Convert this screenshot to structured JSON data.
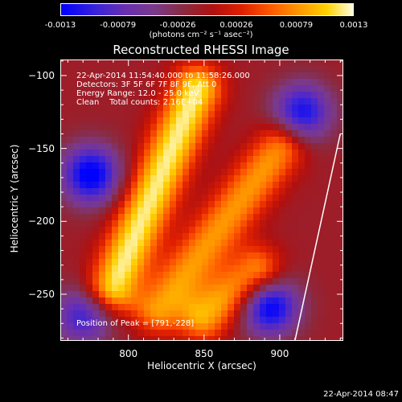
{
  "colorbar": {
    "ticks": [
      "-0.0013",
      "-0.00079",
      "-0.00026",
      "0.00026",
      "0.00079",
      "0.0013"
    ],
    "units": "(photons cm⁻² s⁻¹ asec⁻²)"
  },
  "chart_data": {
    "type": "heatmap",
    "title": "Reconstructed RHESSI Image",
    "xlabel": "Heliocentric X (arcsec)",
    "ylabel": "Heliocentric Y (arcsec)",
    "xlim": [
      755,
      942
    ],
    "ylim": [
      -282,
      -89
    ],
    "xticks": [
      800,
      850,
      900
    ],
    "yticks": [
      -100,
      -150,
      -200,
      -250
    ],
    "zlim": [
      -0.0013,
      0.0013
    ],
    "colormap": "RHESSI red-temperature (blue-purple negative, red-yellow-white positive)",
    "annotations": {
      "time": "22-Apr-2014 11:54:40.000 to 11:58:26.000",
      "detectors": "Detectors: 3F 5F 6F 7F 8F 9F, Att 0",
      "energy": "Energy Range: 12.0 - 25.0 keV",
      "clean": "Clean    Total counts: 2.16E+04",
      "peak": "Position of Peak = [791,-228]"
    },
    "features": [
      {
        "kind": "positive-ridge",
        "from": [
          790,
          -245
        ],
        "to": [
          845,
          -110
        ],
        "peak": 0.0013
      },
      {
        "kind": "positive-ridge",
        "from": [
          820,
          -260
        ],
        "to": [
          900,
          -150
        ],
        "peak": 0.0009
      },
      {
        "kind": "positive-ridge",
        "from": [
          850,
          -265
        ],
        "to": [
          885,
          -235
        ],
        "peak": 0.001
      },
      {
        "kind": "negative-blob",
        "center": [
          775,
          -168
        ],
        "peak": -0.0013
      },
      {
        "kind": "negative-blob",
        "center": [
          915,
          -125
        ],
        "peak": -0.0011
      },
      {
        "kind": "negative-blob",
        "center": [
          893,
          -258
        ],
        "peak": -0.0013
      },
      {
        "kind": "negative-blob",
        "center": [
          770,
          -265
        ],
        "peak": -0.0009
      }
    ],
    "limb_line": {
      "from": [
        910,
        -282
      ],
      "to": [
        940,
        -140
      ]
    }
  },
  "footer": {
    "date": "22-Apr-2014 08:47"
  }
}
